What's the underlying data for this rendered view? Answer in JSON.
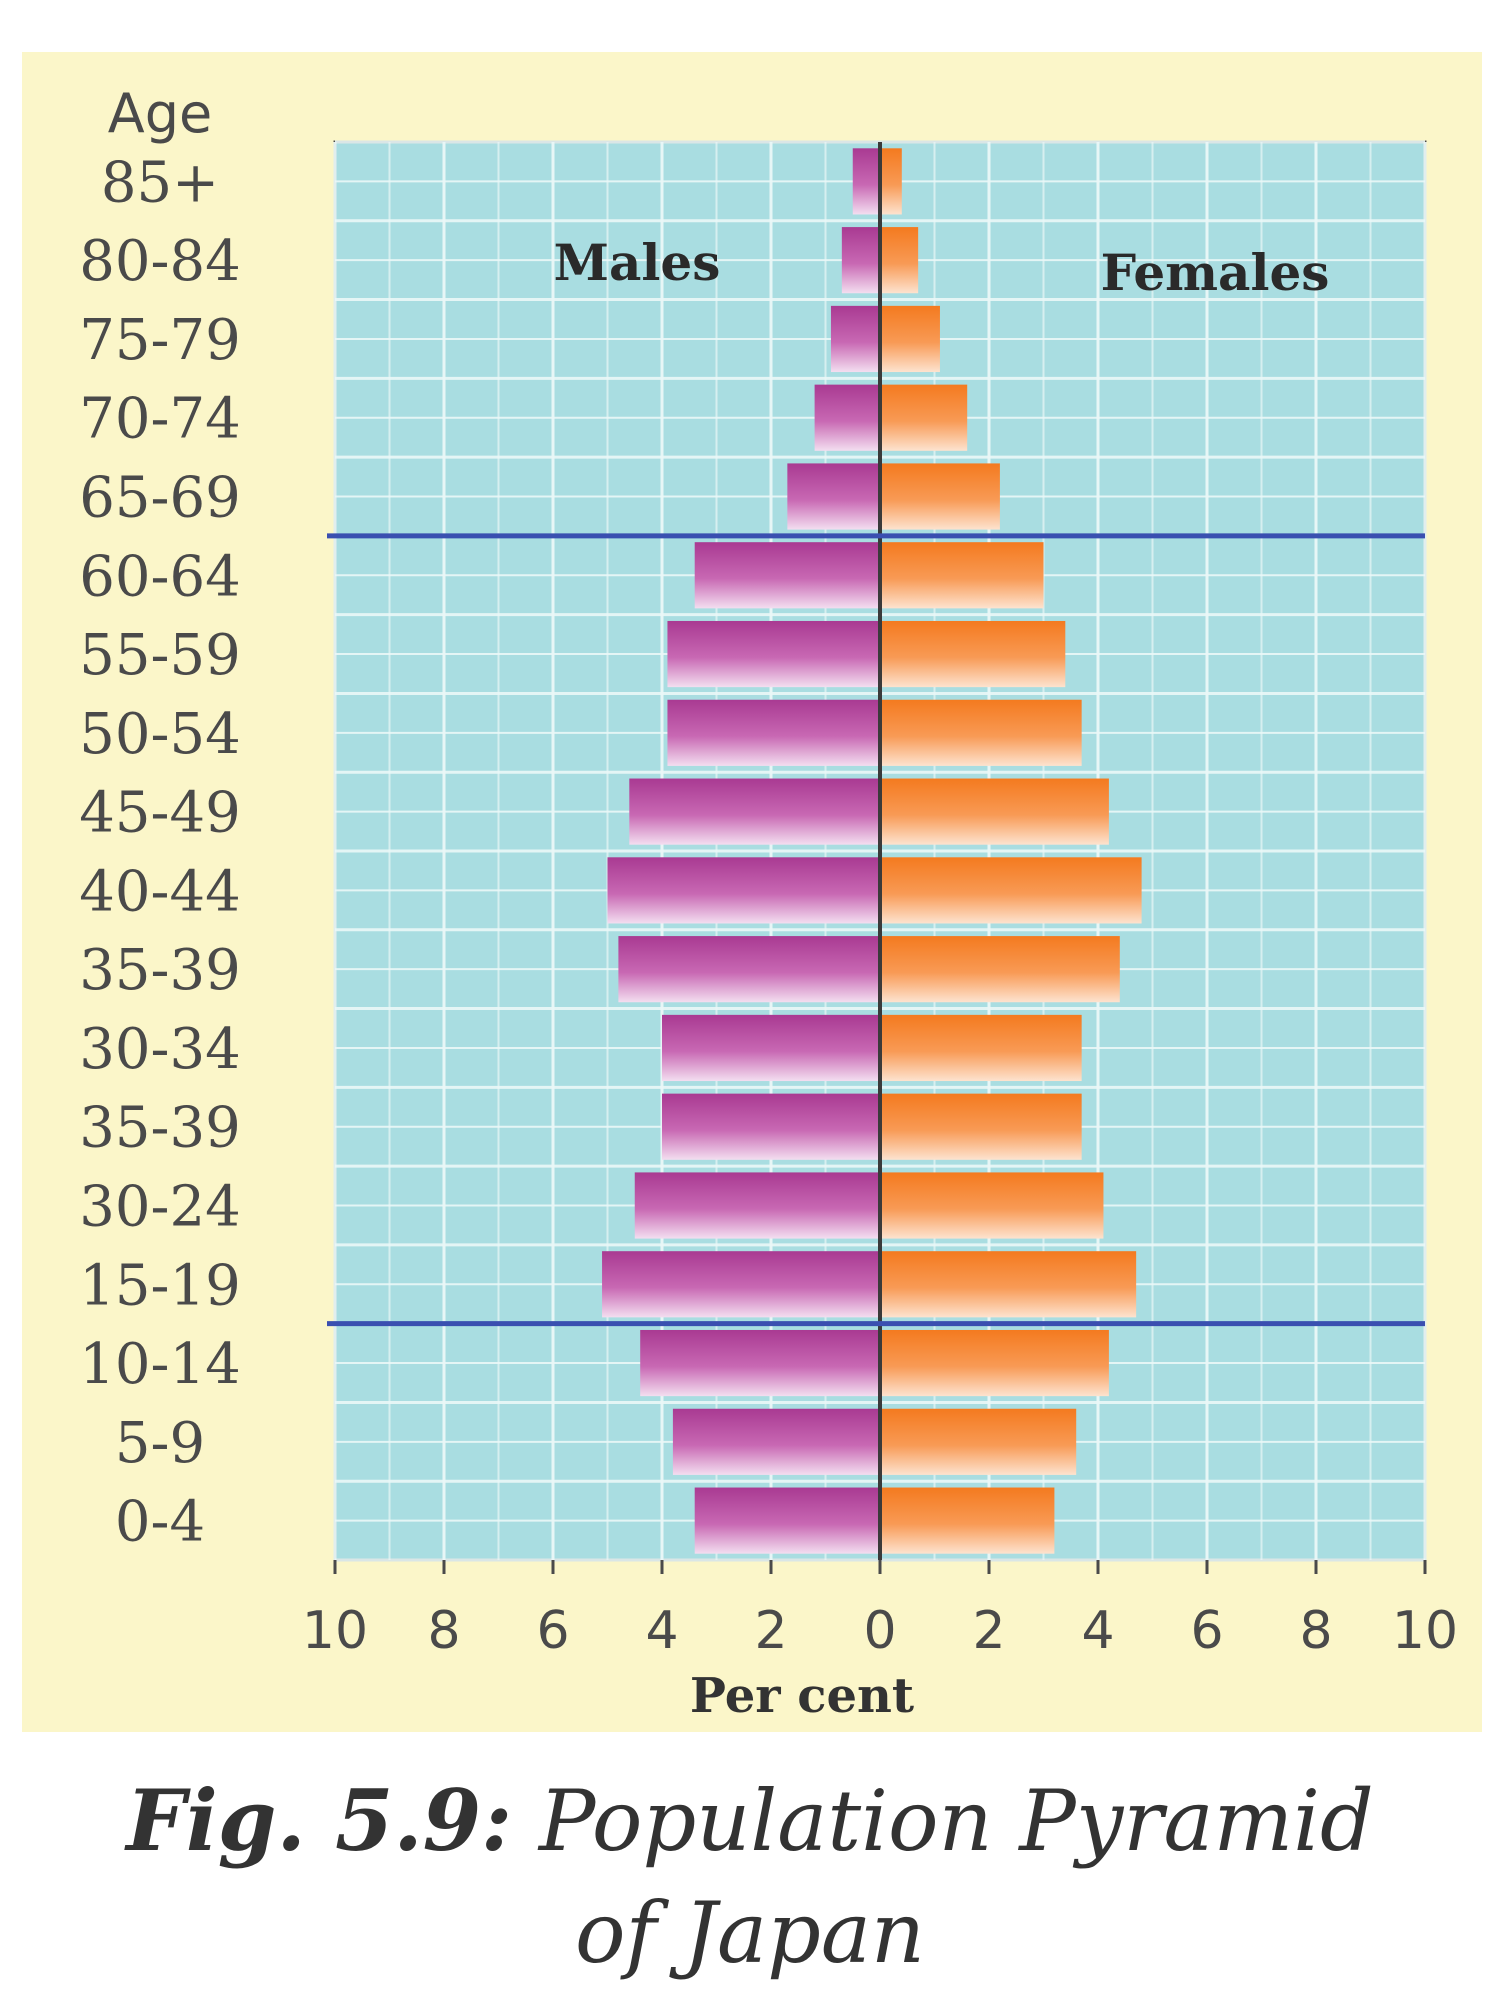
{
  "chart_data": {
    "type": "bar",
    "subtype": "population-pyramid",
    "y_axis_title": "Age",
    "x_axis_title": "Per cent",
    "left_series_label": "Males",
    "right_series_label": "Females",
    "categories": [
      "85+",
      "80-84",
      "75-79",
      "70-74",
      "65-69",
      "60-64",
      "55-59",
      "50-54",
      "45-49",
      "40-44",
      "35-39",
      "30-34",
      "35-39",
      "30-24",
      "15-19",
      "10-14",
      "5-9",
      "0-4"
    ],
    "series": [
      {
        "name": "Males",
        "values": [
          0.5,
          0.7,
          0.9,
          1.2,
          1.7,
          3.4,
          3.9,
          3.9,
          4.6,
          5.0,
          4.8,
          4.0,
          4.0,
          4.5,
          5.1,
          4.4,
          3.8,
          3.4
        ]
      },
      {
        "name": "Females",
        "values": [
          0.4,
          0.7,
          1.1,
          1.6,
          2.2,
          3.0,
          3.4,
          3.7,
          4.2,
          4.8,
          4.4,
          3.7,
          3.7,
          4.1,
          4.7,
          4.2,
          3.6,
          3.2
        ]
      }
    ],
    "x_ticks": [
      "10",
      "8",
      "6",
      "4",
      "2",
      "0",
      "2",
      "4",
      "6",
      "8",
      "10"
    ],
    "xlim": [
      -10,
      10
    ],
    "reference_lines_between": [
      [
        "65-69",
        "60-64"
      ],
      [
        "15-19",
        "10-14"
      ]
    ],
    "colors": {
      "males": "#b8479f",
      "females": "#f6822d",
      "plot_background": "#a9dde1",
      "grid": "#eaf7f7",
      "panel": "#fbf6c9",
      "reference_line": "#3a4fb0",
      "center_line": "#3a3a3a"
    },
    "grid": true
  },
  "caption": {
    "figure_number": "Fig. 5.9:",
    "line1": "Population Pyramid",
    "line2": "of Japan"
  }
}
